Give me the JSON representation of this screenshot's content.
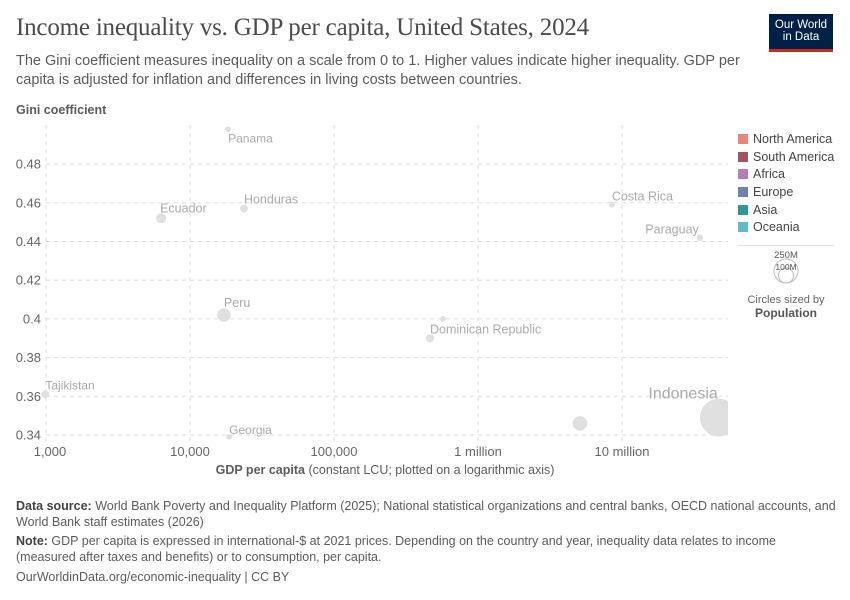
{
  "header": {
    "title": "Income inequality vs. GDP per capita, United States, 2024",
    "subtitle": "The Gini coefficient measures inequality on a scale from 0 to 1. Higher values indicate higher inequality. GDP per capita is adjusted for inflation and differences in living costs between countries.",
    "logo": "Our World in Data"
  },
  "chart_data": {
    "type": "scatter",
    "ylabel": "Gini coefficient",
    "xlabel_bold": "GDP per capita",
    "xlabel_rest": " (constant LCU; plotted on a logarithmic axis)",
    "x_scale": "log",
    "xlim": [
      1000,
      50000000
    ],
    "ylim": [
      0.34,
      0.5
    ],
    "x_ticks": [
      {
        "value": 1000,
        "label": "1,000"
      },
      {
        "value": 10000,
        "label": "10,000"
      },
      {
        "value": 100000,
        "label": "100,000"
      },
      {
        "value": 1000000,
        "label": "1 million"
      },
      {
        "value": 10000000,
        "label": "10 million"
      }
    ],
    "y_ticks": [
      {
        "value": 0.34,
        "label": "0.34"
      },
      {
        "value": 0.36,
        "label": "0.36"
      },
      {
        "value": 0.38,
        "label": "0.38"
      },
      {
        "value": 0.4,
        "label": "0.4"
      },
      {
        "value": 0.42,
        "label": "0.42"
      },
      {
        "value": 0.44,
        "label": "0.44"
      },
      {
        "value": 0.46,
        "label": "0.46"
      },
      {
        "value": 0.48,
        "label": "0.48"
      }
    ],
    "grid": true,
    "point_color": "#e0e0e0",
    "points": [
      {
        "label": "Panama",
        "x": 18400,
        "y": 0.498,
        "population_m": 4.5
      },
      {
        "label": "Ecuador",
        "x": 6300,
        "y": 0.452,
        "population_m": 18
      },
      {
        "label": "Honduras",
        "x": 23700,
        "y": 0.457,
        "population_m": 10.5
      },
      {
        "label": "Peru",
        "x": 17200,
        "y": 0.402,
        "population_m": 34
      },
      {
        "label": "",
        "x": 571000,
        "y": 0.4,
        "population_m": 3.4
      },
      {
        "label": "Dominican Republic",
        "x": 464000,
        "y": 0.39,
        "population_m": 11
      },
      {
        "label": "Costa Rica",
        "x": 8500000,
        "y": 0.459,
        "population_m": 5.2
      },
      {
        "label": "Paraguay",
        "x": 34700000,
        "y": 0.442,
        "population_m": 6.9
      },
      {
        "label": "Tajikistan",
        "x": 990,
        "y": 0.361,
        "population_m": 10.4
      },
      {
        "label": "Georgia",
        "x": 18700,
        "y": 0.339,
        "population_m": 3.7
      },
      {
        "label": "",
        "x": 5100000,
        "y": 0.346,
        "population_m": 40
      },
      {
        "label": "Indonesia",
        "x": 47000000,
        "y": 0.349,
        "population_m": 280
      }
    ],
    "legend": {
      "placement": "right",
      "items": [
        {
          "label": "North America",
          "color": "#e6877a"
        },
        {
          "label": "South America",
          "color": "#a2555f"
        },
        {
          "label": "Africa",
          "color": "#b77cb8"
        },
        {
          "label": "Europe",
          "color": "#6d84b0"
        },
        {
          "label": "Asia",
          "color": "#2e9a8f"
        },
        {
          "label": "Oceania",
          "color": "#61bbc7"
        }
      ],
      "size_legend": {
        "large": "250M",
        "small": "100M",
        "caption": "Circles sized by",
        "variable": "Population"
      }
    }
  },
  "footer": {
    "source_label": "Data source:",
    "source": " World Bank Poverty and Inequality Platform (2025); National statistical organizations and central banks, OECD national accounts, and World Bank staff estimates (2026)",
    "note_label": "Note:",
    "note": " GDP per capita is expressed in international-$ at 2021 prices. Depending on the country and year, inequality data relates to income (measured after taxes and benefits) or to consumption, per capita.",
    "link": "OurWorldinData.org/economic-inequality | CC BY"
  }
}
